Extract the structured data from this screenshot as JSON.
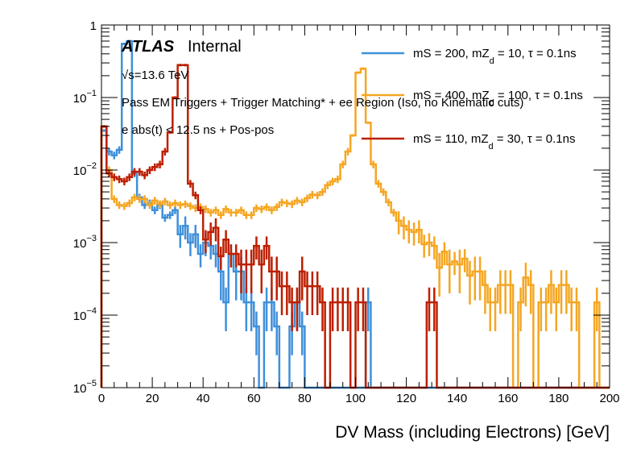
{
  "chart_data": {
    "type": "histogram-step",
    "title": "",
    "xlabel": "DV Mass (including Electrons) [GeV]",
    "ylabel": "",
    "xlim": [
      0,
      200
    ],
    "ylim": [
      1e-05,
      1
    ],
    "yscale": "log",
    "bin_width": 2,
    "x_ticks": [
      "0",
      "20",
      "40",
      "60",
      "80",
      "100",
      "120",
      "140",
      "160",
      "180",
      "200"
    ],
    "x_tick_values": [
      0,
      20,
      40,
      60,
      80,
      100,
      120,
      140,
      160,
      180,
      200
    ],
    "y_ticks": [
      {
        "value": 1,
        "base": "1",
        "exp": ""
      },
      {
        "value": 0.1,
        "base": "10",
        "exp": "−1"
      },
      {
        "value": 0.01,
        "base": "10",
        "exp": "−2"
      },
      {
        "value": 0.001,
        "base": "10",
        "exp": "−3"
      },
      {
        "value": 0.0001,
        "base": "10",
        "exp": "−4"
      },
      {
        "value": 1e-05,
        "base": "10",
        "exp": "−5"
      }
    ],
    "annotations": {
      "experiment": "ATLAS",
      "status": "Internal",
      "energy": "√s=13.6 TeV",
      "selection": "Pass EM Triggers + Trigger Matching* + ee Region (Iso, no Kinematic cuts)",
      "cut": "e abs(t) < 12.5 ns + Pos-pos"
    },
    "legend_position": "top-right",
    "series": [
      {
        "name": "mS = 200, mZd = 10, τ = 0.1ns",
        "label_main": "mS = 200, mZ",
        "label_sub": "d",
        "label_tail": " = 10, τ = 0.1ns",
        "color": "#3f90da",
        "values": [
          0.035,
          0.018,
          0.016,
          0.019,
          0.55,
          0.6,
          0.009,
          0.0042,
          0.0033,
          0.0035,
          0.0028,
          0.0033,
          0.0022,
          0.0024,
          0.0028,
          0.0013,
          0.0017,
          0.001,
          0.0013,
          0.0007,
          0.001,
          0.0009,
          0.0007,
          0.0004,
          0.00015,
          0.0007,
          0.0004,
          0.0004,
          0.00015,
          0.00015,
          7e-05,
          0.0,
          0.00015,
          0.00015,
          7e-05,
          0.0,
          0.0,
          7e-05,
          0.00015,
          7e-05,
          0.0,
          0.0,
          0.0,
          0.0,
          0.0,
          0.0,
          0.0,
          0.0,
          0.0,
          0.0,
          0.0,
          0.0,
          0.00015,
          0.0,
          0.0,
          0.0,
          0.0,
          0.0,
          0.0,
          0.0,
          0.0,
          0.0,
          0.0,
          0.0,
          0.0,
          0.0,
          0.0,
          0.0,
          0.0,
          0.0,
          0.0,
          0.0,
          0.0,
          0.0,
          0.0,
          0.0,
          0.0,
          0.0,
          0.0,
          0.0,
          0.0,
          0.0,
          0.0,
          0.0,
          0.0,
          0.0,
          0.0,
          0.0,
          0.0,
          0.0,
          0.0,
          0.0,
          0.0,
          0.0,
          0.0,
          0.0,
          0.0,
          0.0,
          0.0,
          0.0
        ]
      },
      {
        "name": "mS = 400, mZd = 100, τ = 0.1ns",
        "label_main": "mS = 400, mZ",
        "label_sub": "d",
        "label_tail": " = 100, τ = 0.1ns",
        "color": "#f5a623",
        "values": [
          0.04,
          0.01,
          0.004,
          0.0033,
          0.0032,
          0.0035,
          0.0042,
          0.004,
          0.004,
          0.0033,
          0.0038,
          0.0034,
          0.0037,
          0.0033,
          0.0035,
          0.0033,
          0.0034,
          0.0032,
          0.003,
          0.0031,
          0.0029,
          0.0026,
          0.0028,
          0.0024,
          0.0029,
          0.0026,
          0.0026,
          0.0028,
          0.0024,
          0.0024,
          0.003,
          0.0029,
          0.0031,
          0.0028,
          0.0031,
          0.0036,
          0.0035,
          0.0034,
          0.0038,
          0.0036,
          0.0041,
          0.0046,
          0.0045,
          0.005,
          0.0062,
          0.007,
          0.0075,
          0.012,
          0.018,
          0.03,
          0.22,
          0.25,
          0.045,
          0.012,
          0.0065,
          0.005,
          0.0036,
          0.0026,
          0.002,
          0.0017,
          0.0015,
          0.0014,
          0.0015,
          0.00095,
          0.001,
          0.0009,
          0.00045,
          0.00075,
          0.0005,
          0.00055,
          0.0005,
          0.0006,
          0.00035,
          0.0004,
          0.0004,
          0.00026,
          0.00015,
          0.00015,
          0.00026,
          0.00026,
          0.00026,
          0.0,
          0.00015,
          0.00033,
          0.00026,
          0.0,
          0.00015,
          0.00015,
          0.00026,
          0.00015,
          0.00026,
          0.00026,
          0.00015,
          0.00015,
          0.0,
          0.0,
          0.0,
          0.00015,
          0.0,
          0.0
        ]
      },
      {
        "name": "mS = 110, mZd = 30, τ = 0.1ns",
        "label_main": "mS = 110, mZ",
        "label_sub": "d",
        "label_tail": " = 30, τ = 0.1ns",
        "color": "#bd1f01",
        "values": [
          0.04,
          0.009,
          0.008,
          0.0075,
          0.007,
          0.008,
          0.0095,
          0.0095,
          0.0085,
          0.01,
          0.011,
          0.012,
          0.018,
          0.033,
          0.1,
          0.28,
          0.28,
          0.0065,
          0.0045,
          0.0028,
          0.0011,
          0.0014,
          0.0016,
          0.00065,
          0.0011,
          0.0007,
          0.0007,
          0.0005,
          0.0005,
          0.0005,
          0.0009,
          0.0005,
          0.0009,
          0.0004,
          0.0004,
          0.00025,
          0.00025,
          0.00015,
          0.00015,
          0.0004,
          0.00025,
          0.00025,
          0.00025,
          0.00015,
          0.0,
          0.00015,
          0.00015,
          0.00015,
          0.00015,
          0.0,
          0.00015,
          0.00015,
          0.0,
          0.0,
          0.0,
          0.0,
          0.0,
          0.0,
          0.0,
          0.0,
          0.0,
          0.0,
          0.0,
          0.0,
          0.00015,
          0.00015,
          0.0,
          0.0,
          0.0,
          0.0,
          0.0,
          0.0,
          0.0,
          0.0,
          0.0,
          0.0,
          0.0,
          0.0,
          0.0,
          0.0,
          0.0,
          0.0,
          0.0,
          0.0,
          0.0,
          0.0,
          0.0,
          0.0,
          0.0,
          0.0,
          0.0,
          0.0,
          0.0,
          0.0,
          0.0,
          0.0,
          0.0,
          0.0,
          0.0,
          0.0
        ]
      }
    ]
  }
}
